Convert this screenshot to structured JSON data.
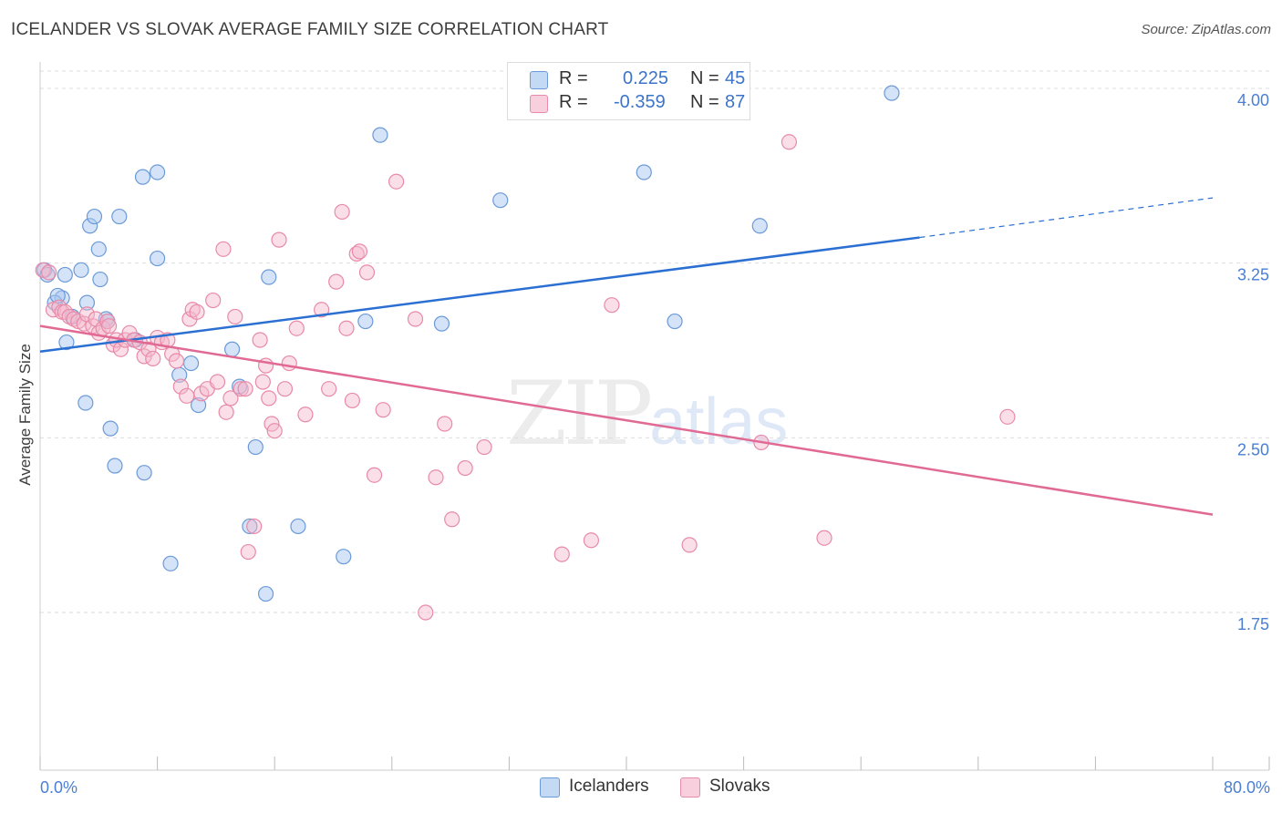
{
  "header": {
    "title": "ICELANDER VS SLOVAK AVERAGE FAMILY SIZE CORRELATION CHART",
    "source": "Source: ZipAtlas.com"
  },
  "legend": {
    "r_label": "R =",
    "n_label": "N =",
    "items": [
      {
        "r": "0.225",
        "n": "45"
      },
      {
        "r": "-0.359",
        "n": "87"
      }
    ]
  },
  "bottom_legend": [
    "Icelanders",
    "Slovaks"
  ],
  "watermark": {
    "zip": "ZIP",
    "atlas": "atlas"
  },
  "colors": {
    "icelanders_fill": "#a9c8ef",
    "icelanders_stroke": "#6b9ad8",
    "icelanders_line": "#2a6fd1",
    "slovaks_fill": "#f5b9cc",
    "slovaks_stroke": "#e88aa8",
    "slovaks_line": "#e06a94",
    "tick_text": "#4a7fd4",
    "grid": "#dddddd"
  },
  "chart_data": {
    "type": "scatter",
    "title": "ICELANDER VS SLOVAK AVERAGE FAMILY SIZE CORRELATION CHART",
    "xlabel": "",
    "ylabel": "Average Family Size",
    "xlim": [
      0,
      80
    ],
    "ylim": [
      1.0,
      4.2
    ],
    "x_tick_labels": [
      "0.0%",
      "80.0%"
    ],
    "y_ticks": [
      1.75,
      2.5,
      3.25,
      4.0
    ],
    "y_tick_labels": [
      "1.75",
      "2.50",
      "3.25",
      "4.00"
    ],
    "grid": true,
    "legend_position": "top-center",
    "series": [
      {
        "name": "Icelanders",
        "r": 0.225,
        "n": 45,
        "trend": {
          "x0": 0,
          "y0": 2.87,
          "x1": 60,
          "y1": 3.36,
          "dashed_to_x": 80,
          "dashed_to_y": 3.53
        },
        "points": [
          [
            0.3,
            3.22
          ],
          [
            0.5,
            3.2
          ],
          [
            1.5,
            3.1
          ],
          [
            1.0,
            3.08
          ],
          [
            1.7,
            3.2
          ],
          [
            2.2,
            3.02
          ],
          [
            2.8,
            3.22
          ],
          [
            3.2,
            3.08
          ],
          [
            3.4,
            3.41
          ],
          [
            3.7,
            3.45
          ],
          [
            4.0,
            3.31
          ],
          [
            3.1,
            2.65
          ],
          [
            1.8,
            2.91
          ],
          [
            4.1,
            3.18
          ],
          [
            4.5,
            3.01
          ],
          [
            4.8,
            2.54
          ],
          [
            5.1,
            2.38
          ],
          [
            5.4,
            3.45
          ],
          [
            6.5,
            2.92
          ],
          [
            7.1,
            2.35
          ],
          [
            7.0,
            3.62
          ],
          [
            8.0,
            3.64
          ],
          [
            8.0,
            3.27
          ],
          [
            8.9,
            1.96
          ],
          [
            9.5,
            2.77
          ],
          [
            10.3,
            2.82
          ],
          [
            10.8,
            2.64
          ],
          [
            13.1,
            2.88
          ],
          [
            13.6,
            2.72
          ],
          [
            14.3,
            2.12
          ],
          [
            14.7,
            2.46
          ],
          [
            15.4,
            1.83
          ],
          [
            15.6,
            3.19
          ],
          [
            17.6,
            2.12
          ],
          [
            20.7,
            1.99
          ],
          [
            22.2,
            3.0
          ],
          [
            23.2,
            3.8
          ],
          [
            27.4,
            2.99
          ],
          [
            31.4,
            3.52
          ],
          [
            41.2,
            3.64
          ],
          [
            43.3,
            3.0
          ],
          [
            49.1,
            3.41
          ],
          [
            58.1,
            3.98
          ],
          [
            1.2,
            3.11
          ],
          [
            4.6,
            3.0
          ]
        ]
      },
      {
        "name": "Slovaks",
        "r": -0.359,
        "n": 87,
        "trend": {
          "x0": 0,
          "y0": 2.98,
          "x1": 80,
          "y1": 2.17
        },
        "points": [
          [
            0.2,
            3.22
          ],
          [
            0.6,
            3.21
          ],
          [
            0.9,
            3.05
          ],
          [
            1.3,
            3.06
          ],
          [
            1.5,
            3.04
          ],
          [
            1.7,
            3.04
          ],
          [
            2.0,
            3.02
          ],
          [
            2.3,
            3.01
          ],
          [
            2.6,
            3.0
          ],
          [
            3.0,
            2.99
          ],
          [
            3.2,
            3.03
          ],
          [
            3.6,
            2.98
          ],
          [
            3.8,
            3.01
          ],
          [
            4.0,
            2.95
          ],
          [
            4.3,
            2.97
          ],
          [
            4.6,
            3.0
          ],
          [
            5.0,
            2.9
          ],
          [
            5.2,
            2.92
          ],
          [
            5.5,
            2.88
          ],
          [
            5.8,
            2.92
          ],
          [
            6.1,
            2.95
          ],
          [
            6.4,
            2.92
          ],
          [
            6.8,
            2.91
          ],
          [
            7.1,
            2.85
          ],
          [
            7.4,
            2.88
          ],
          [
            7.7,
            2.84
          ],
          [
            8.0,
            2.93
          ],
          [
            8.3,
            2.91
          ],
          [
            8.7,
            2.92
          ],
          [
            9.0,
            2.86
          ],
          [
            9.3,
            2.83
          ],
          [
            9.6,
            2.72
          ],
          [
            10.0,
            2.68
          ],
          [
            10.2,
            3.01
          ],
          [
            10.4,
            3.05
          ],
          [
            10.7,
            3.04
          ],
          [
            11.0,
            2.69
          ],
          [
            11.4,
            2.71
          ],
          [
            11.8,
            3.09
          ],
          [
            12.1,
            2.74
          ],
          [
            12.5,
            3.31
          ],
          [
            12.7,
            2.61
          ],
          [
            13.0,
            2.67
          ],
          [
            13.3,
            3.02
          ],
          [
            13.7,
            2.71
          ],
          [
            14.0,
            2.71
          ],
          [
            14.2,
            2.01
          ],
          [
            14.6,
            2.12
          ],
          [
            15.0,
            2.92
          ],
          [
            15.2,
            2.74
          ],
          [
            15.4,
            2.81
          ],
          [
            15.6,
            2.67
          ],
          [
            15.8,
            2.56
          ],
          [
            16.0,
            2.53
          ],
          [
            16.3,
            3.35
          ],
          [
            16.7,
            2.71
          ],
          [
            17.0,
            2.82
          ],
          [
            17.5,
            2.97
          ],
          [
            18.1,
            2.6
          ],
          [
            19.2,
            3.05
          ],
          [
            19.7,
            2.71
          ],
          [
            20.2,
            3.17
          ],
          [
            20.6,
            3.47
          ],
          [
            20.9,
            2.97
          ],
          [
            21.3,
            2.66
          ],
          [
            21.6,
            3.29
          ],
          [
            21.8,
            3.3
          ],
          [
            22.3,
            3.21
          ],
          [
            22.8,
            2.34
          ],
          [
            23.4,
            2.62
          ],
          [
            24.3,
            3.6
          ],
          [
            25.6,
            3.01
          ],
          [
            26.3,
            1.75
          ],
          [
            27.0,
            2.33
          ],
          [
            27.6,
            2.56
          ],
          [
            28.1,
            2.15
          ],
          [
            29.0,
            2.37
          ],
          [
            30.3,
            2.46
          ],
          [
            35.6,
            2.0
          ],
          [
            37.6,
            2.06
          ],
          [
            39.0,
            3.07
          ],
          [
            44.3,
            2.04
          ],
          [
            49.2,
            2.48
          ],
          [
            51.1,
            3.77
          ],
          [
            53.5,
            2.07
          ],
          [
            66.0,
            2.59
          ],
          [
            4.7,
            2.98
          ]
        ]
      }
    ]
  }
}
